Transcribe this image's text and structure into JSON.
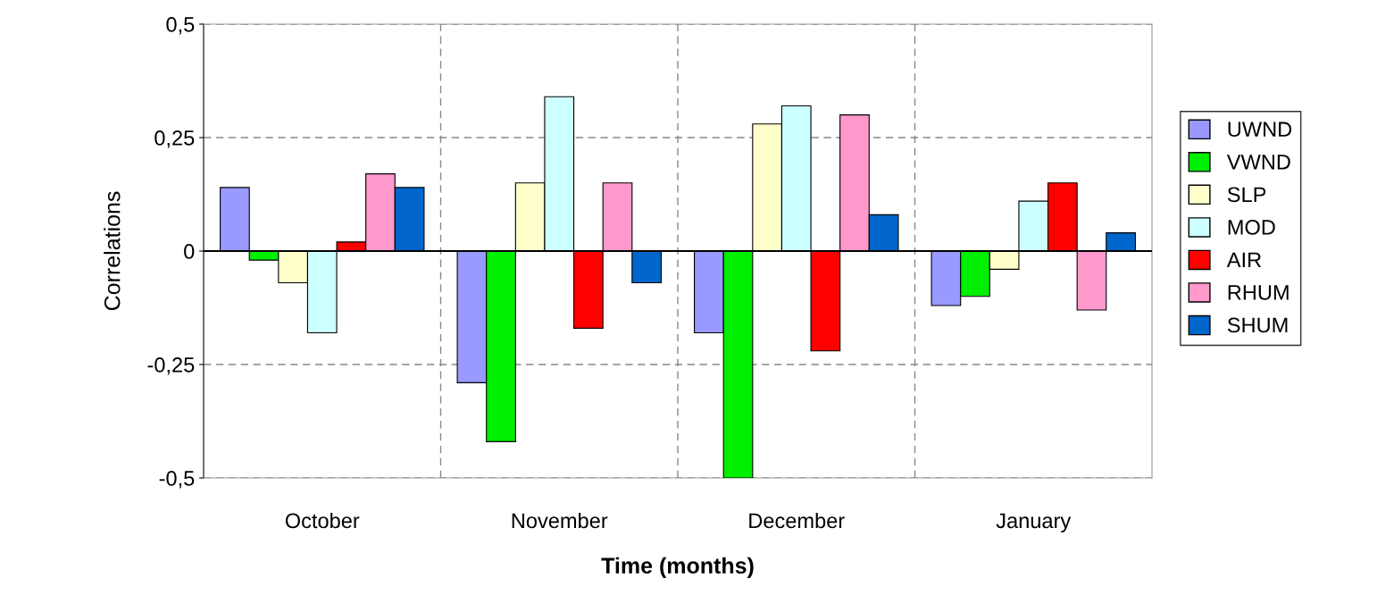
{
  "chart_data": {
    "type": "bar",
    "xlabel": "Time (months)",
    "ylabel": "Correlations",
    "categories": [
      "October",
      "November",
      "December",
      "January"
    ],
    "series": [
      {
        "name": "UWND",
        "color": "#9999ff",
        "values": [
          0.14,
          -0.29,
          -0.18,
          -0.12
        ]
      },
      {
        "name": "VWND",
        "color": "#00ee00",
        "values": [
          -0.02,
          -0.42,
          -0.5,
          -0.1
        ]
      },
      {
        "name": "SLP",
        "color": "#ffffcc",
        "values": [
          -0.07,
          0.15,
          0.28,
          -0.04
        ]
      },
      {
        "name": "MOD",
        "color": "#ccffff",
        "values": [
          -0.18,
          0.34,
          0.32,
          0.11
        ]
      },
      {
        "name": "AIR",
        "color": "#ff0000",
        "values": [
          0.02,
          -0.17,
          -0.22,
          0.15
        ]
      },
      {
        "name": "RHUM",
        "color": "#ff99cc",
        "values": [
          0.17,
          0.15,
          0.3,
          -0.13
        ]
      },
      {
        "name": "SHUM",
        "color": "#0066cc",
        "values": [
          0.14,
          -0.07,
          0.08,
          0.04
        ]
      }
    ],
    "ylim": [
      -0.5,
      0.5
    ],
    "yticks": [
      {
        "value": -0.5,
        "label": "-0,5"
      },
      {
        "value": -0.25,
        "label": "-0,25"
      },
      {
        "value": 0,
        "label": "0"
      },
      {
        "value": 0.25,
        "label": "0,25"
      },
      {
        "value": 0.5,
        "label": "0,5"
      }
    ],
    "grid": true,
    "legend": "right"
  }
}
